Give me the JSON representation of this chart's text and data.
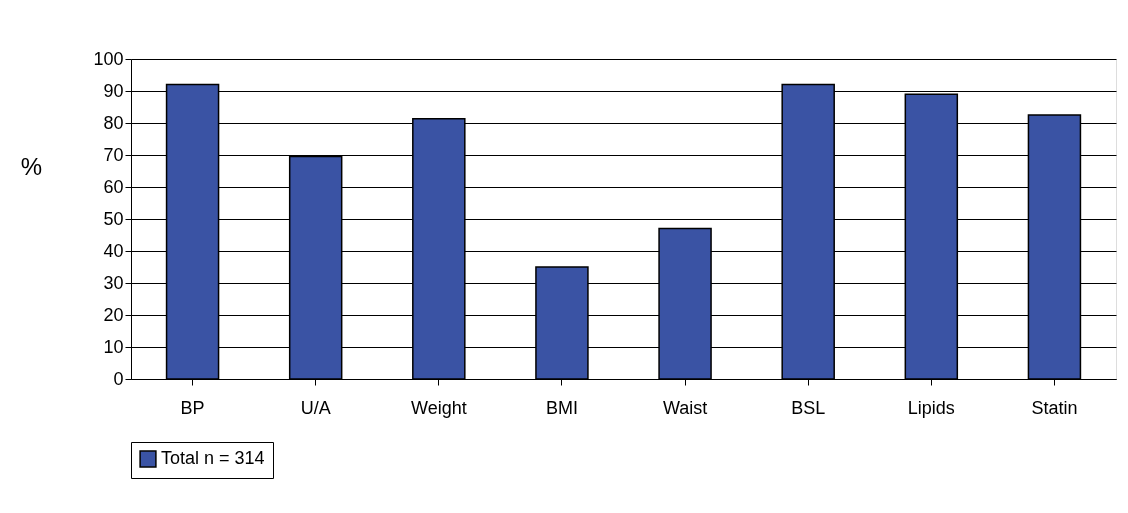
{
  "chart_data": {
    "type": "bar",
    "ylabel": "%",
    "categories": [
      "BP",
      "U/A",
      "Weight",
      "BMI",
      "Waist",
      "BSL",
      "Lipids",
      "Statin"
    ],
    "series": [
      {
        "name": "Total n = 314",
        "color": "#3a53a4",
        "values": [
          92,
          69.5,
          81.3,
          35,
          47,
          92,
          89,
          82.5
        ]
      }
    ],
    "ylim": [
      0,
      100
    ],
    "yticks": [
      0,
      10,
      20,
      30,
      40,
      50,
      60,
      70,
      80,
      90,
      100
    ],
    "grid": "y",
    "legend": "bottom"
  }
}
